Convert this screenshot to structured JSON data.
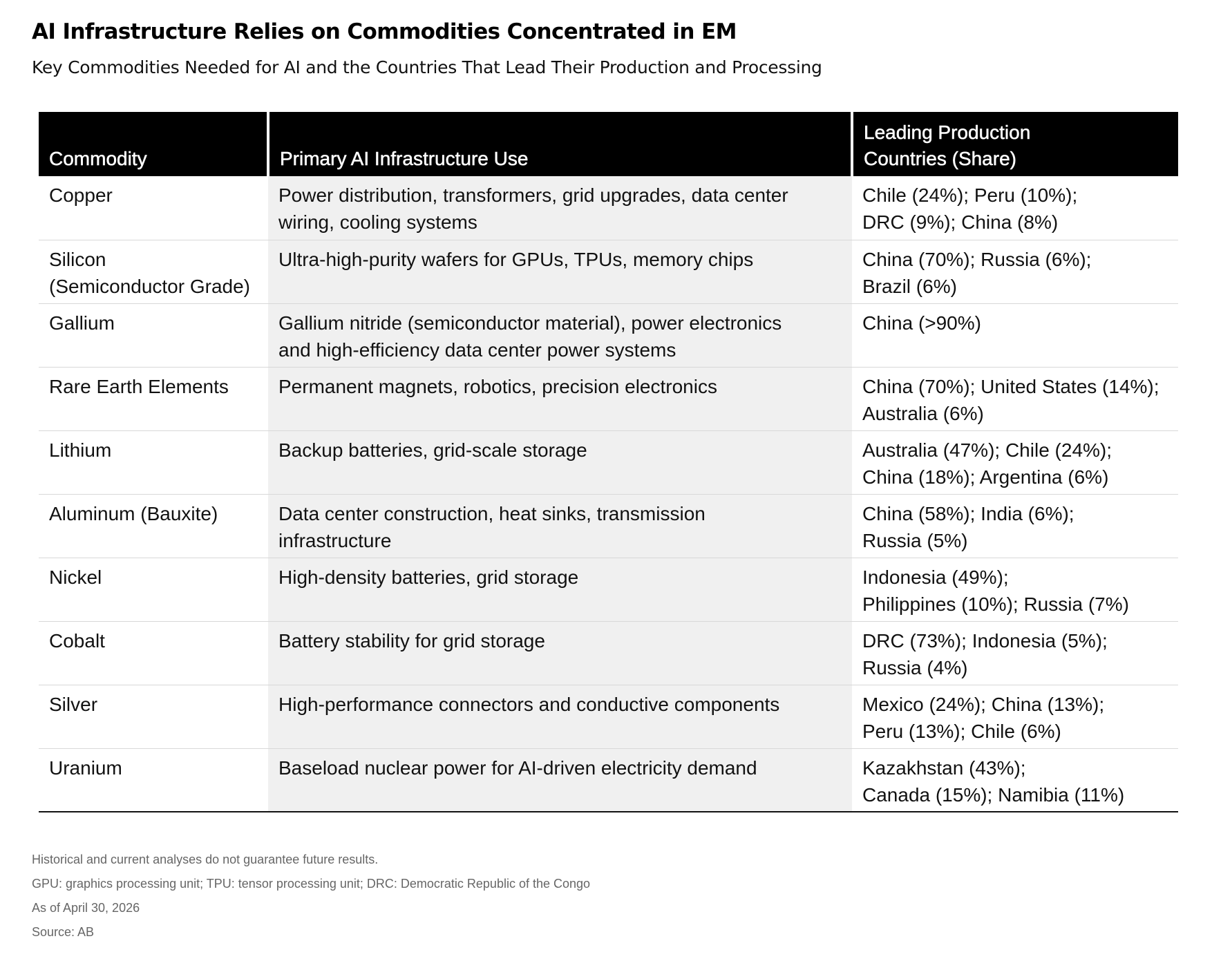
{
  "title": "AI Infrastructure Relies on Commodities Concentrated in EM",
  "subtitle": "Key Commodities Needed for AI and the Countries That Lead Their Production and Processing",
  "chart_data": {
    "type": "table",
    "columns": [
      "Commodity",
      "Primary AI Infrastructure Use",
      "Leading Production Countries (Share)"
    ],
    "rows": [
      {
        "commodity": [
          "Copper"
        ],
        "use": [
          "Power distribution, transformers, grid upgrades, data center",
          "wiring, cooling systems"
        ],
        "countries": [
          "Chile (24%); Peru (10%);",
          "DRC (9%); China (8%)"
        ]
      },
      {
        "commodity": [
          "Silicon",
          "(Semiconductor Grade)"
        ],
        "use": [
          "Ultra-high-purity wafers for GPUs, TPUs, memory chips"
        ],
        "countries": [
          "China (70%); Russia (6%);",
          "Brazil (6%)"
        ]
      },
      {
        "commodity": [
          "Gallium"
        ],
        "use": [
          "Gallium nitride (semiconductor material), power electronics",
          "and high-efficiency data center power systems"
        ],
        "countries": [
          "China (>90%)"
        ]
      },
      {
        "commodity": [
          "Rare Earth Elements"
        ],
        "use": [
          "Permanent magnets, robotics, precision electronics"
        ],
        "countries": [
          "China (70%); United States (14%);",
          "Australia (6%)"
        ]
      },
      {
        "commodity": [
          "Lithium"
        ],
        "use": [
          "Backup batteries, grid-scale storage"
        ],
        "countries": [
          "Australia (47%); Chile (24%);",
          "China (18%); Argentina (6%)"
        ]
      },
      {
        "commodity": [
          "Aluminum (Bauxite)"
        ],
        "use": [
          "Data center construction, heat sinks, transmission",
          "infrastructure"
        ],
        "countries": [
          "China (58%); India (6%);",
          "Russia (5%)"
        ]
      },
      {
        "commodity": [
          "Nickel"
        ],
        "use": [
          "High-density batteries, grid storage"
        ],
        "countries": [
          "Indonesia (49%);",
          "Philippines (10%); Russia (7%)"
        ]
      },
      {
        "commodity": [
          "Cobalt"
        ],
        "use": [
          "Battery stability for grid storage"
        ],
        "countries": [
          "DRC (73%); Indonesia (5%);",
          "Russia (4%)"
        ]
      },
      {
        "commodity": [
          "Silver"
        ],
        "use": [
          "High-performance connectors and conductive components"
        ],
        "countries": [
          "Mexico (24%); China (13%);",
          "Peru (13%); Chile (6%)"
        ]
      },
      {
        "commodity": [
          "Uranium"
        ],
        "use": [
          "Baseload nuclear power for AI-driven electricity demand"
        ],
        "countries": [
          "Kazakhstan (43%);",
          "Canada (15%); Namibia (11%)"
        ]
      }
    ]
  },
  "header_lines": {
    "commodity": [
      "Commodity"
    ],
    "use": [
      "Primary AI Infrastructure Use"
    ],
    "countries": [
      "Leading Production",
      "Countries (Share)"
    ]
  },
  "footnotes": [
    "Historical and current analyses do not guarantee future results.",
    "GPU: graphics processing unit; TPU: tensor processing unit; DRC: Democratic Republic of the Congo",
    "As of April 30, 2026",
    "Source: AB"
  ],
  "colors": {
    "header_background": "#000000",
    "header_text": "#ffffff",
    "use_column_background": "#f0f0f0",
    "row_divider": "#d8d8d8",
    "footnote_text": "#666666"
  }
}
